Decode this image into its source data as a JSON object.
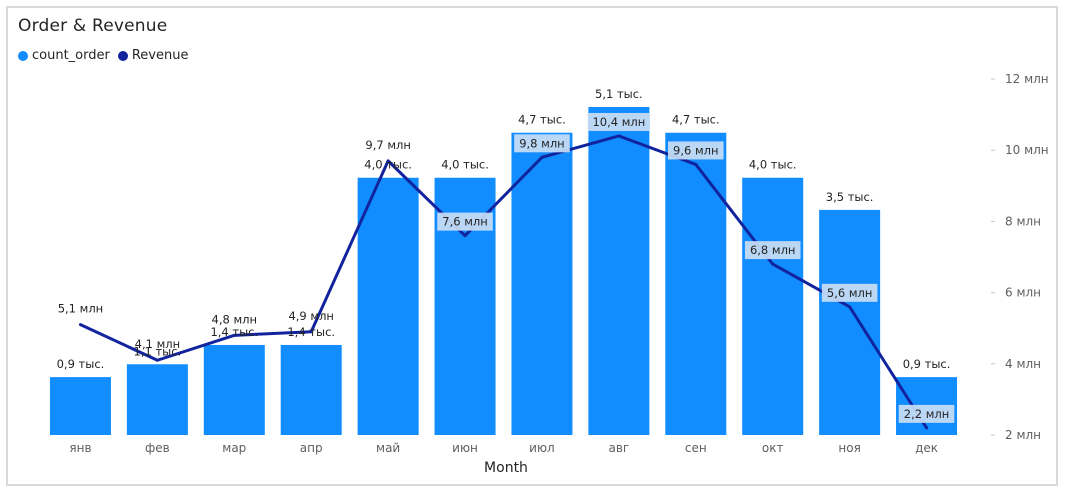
{
  "title": "Order & Revenue",
  "legend": [
    {
      "name": "count_order",
      "color": "#118dff"
    },
    {
      "name": "Revenue",
      "color": "#12239e"
    }
  ],
  "chart_data": {
    "type": "bar",
    "title": "Order & Revenue",
    "xlabel": "Month",
    "ylabel": "",
    "categories": [
      "янв",
      "фев",
      "мар",
      "апр",
      "май",
      "июн",
      "июл",
      "авг",
      "сен",
      "окт",
      "ноя",
      "дек"
    ],
    "series": [
      {
        "name": "count_order",
        "type": "bar",
        "axis": "left",
        "color": "#118dff",
        "values": [
          900,
          1100,
          1400,
          1400,
          4000,
          4000,
          4700,
          5100,
          4700,
          4000,
          3500,
          900
        ],
        "labels": [
          "0,9 тыс.",
          "1,1 тыс.",
          "1,4 тыс.",
          "1,4 тыс.",
          "4,0 тыс.",
          "4,0 тыс.",
          "4,7 тыс.",
          "5,1 тыс.",
          "4,7 тыс.",
          "4,0 тыс.",
          "3,5 тыс.",
          "0,9 тыс."
        ]
      },
      {
        "name": "Revenue",
        "type": "line",
        "axis": "right",
        "color": "#12239e",
        "values": [
          5.1,
          4.1,
          4.8,
          4.9,
          9.7,
          7.6,
          9.8,
          10.4,
          9.6,
          6.8,
          5.6,
          2.2
        ],
        "labels": [
          "5,1 млн",
          "4,1 млн",
          "4,8 млн",
          "4,9 млн",
          "9,7 млн",
          "7,6 млн",
          "9,8 млн",
          "10,4 млн",
          "9,6 млн",
          "6,8 млн",
          "5,6 млн",
          "2,2 млн"
        ]
      }
    ],
    "right_axis": {
      "ticks": [
        2,
        4,
        6,
        8,
        10,
        12
      ],
      "tick_labels": [
        "2 млн",
        "4 млн",
        "6 млн",
        "8 млн",
        "10 млн",
        "12 млн"
      ],
      "ylim": [
        2,
        12
      ]
    },
    "left_axis_hidden": true,
    "grid": false,
    "legend_position": "top-left"
  }
}
